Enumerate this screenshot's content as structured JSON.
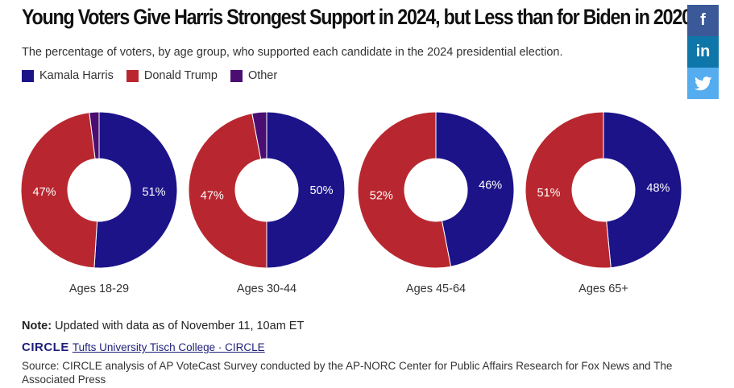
{
  "header": {
    "title": "Young Voters Give Harris Strongest Support in 2024, but Less than for Biden in 2020",
    "subtitle": "The percentage of voters, by age group, who supported each candidate in the 2024 presidential election."
  },
  "legend": [
    {
      "label": "Kamala Harris",
      "color": "#1c1389"
    },
    {
      "label": "Donald Trump",
      "color": "#b8272f"
    },
    {
      "label": "Other",
      "color": "#4a0e73"
    }
  ],
  "social": {
    "facebook": "f",
    "linkedin": "in",
    "twitter": "twitter-bird-icon"
  },
  "chart_data": {
    "type": "pie",
    "style": "donut",
    "series": [
      {
        "name": "Kamala Harris",
        "color": "#1c1389"
      },
      {
        "name": "Donald Trump",
        "color": "#b8272f"
      },
      {
        "name": "Other",
        "color": "#4a0e73"
      }
    ],
    "charts": [
      {
        "label": "Ages 18-29",
        "values": [
          51,
          47,
          2
        ],
        "value_labels": [
          "51%",
          "47%",
          ""
        ]
      },
      {
        "label": "Ages 30-44",
        "values": [
          50,
          47,
          3
        ],
        "value_labels": [
          "50%",
          "47%",
          ""
        ]
      },
      {
        "label": "Ages 45-64",
        "values": [
          46,
          52,
          0
        ],
        "value_labels": [
          "46%",
          "52%",
          ""
        ]
      },
      {
        "label": "Ages 65+",
        "values": [
          48,
          51,
          0
        ],
        "value_labels": [
          "48%",
          "51%",
          ""
        ]
      }
    ]
  },
  "footer": {
    "note_label": "Note:",
    "note_text": "Updated with data as of November 11, 10am ET",
    "logo_text": "CIRCLE",
    "credit_link": "Tufts University Tisch College · CIRCLE",
    "source": "Source: CIRCLE analysis of AP VoteCast Survey conducted by the AP-NORC Center for Public Affairs Research for Fox News and The Associated Press"
  }
}
